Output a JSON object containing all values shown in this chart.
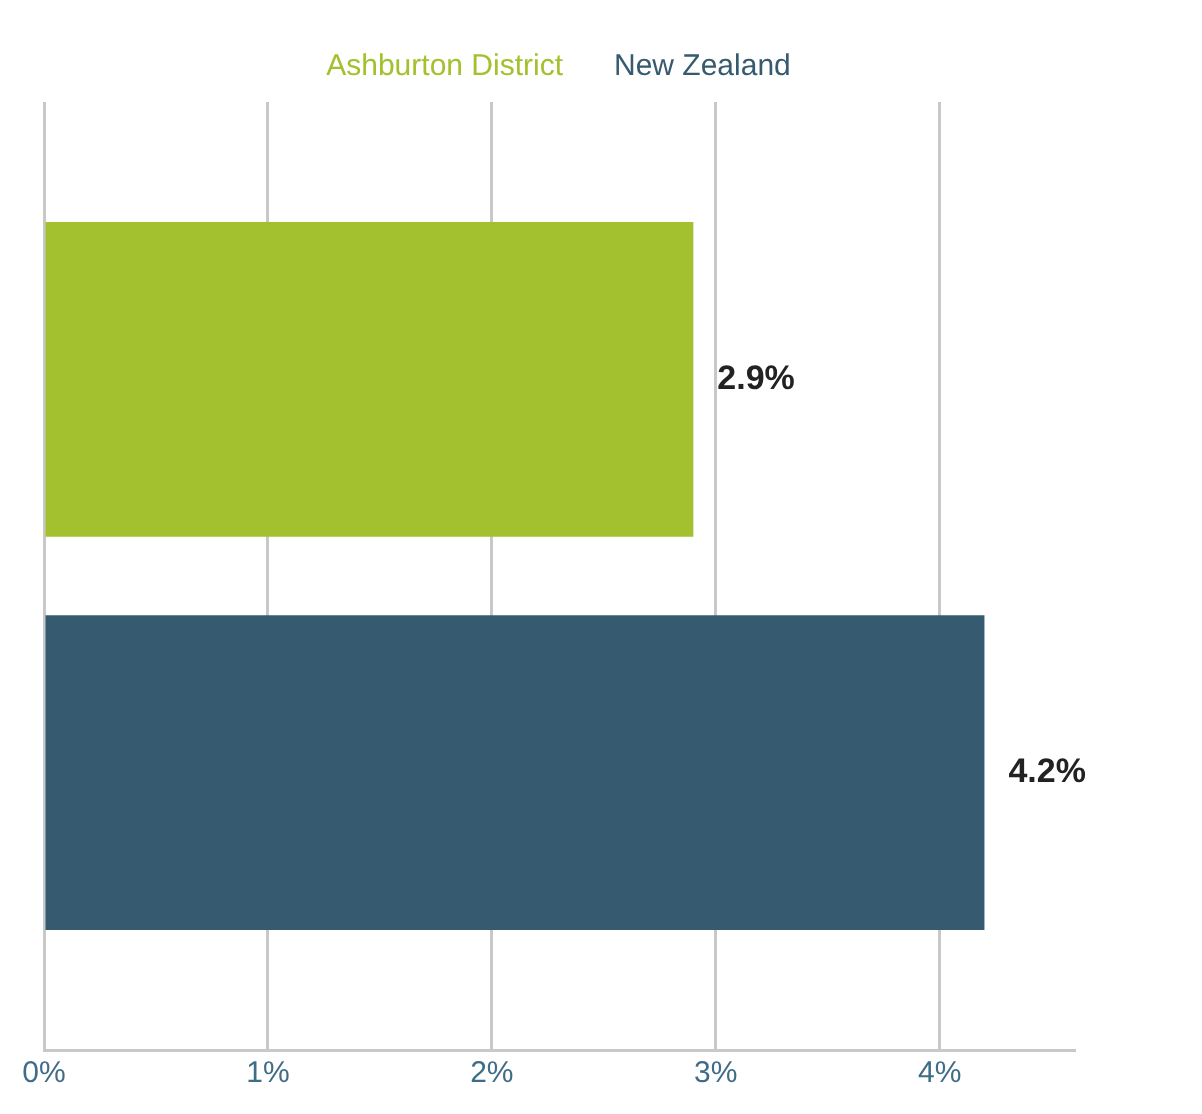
{
  "chart_data": {
    "type": "bar",
    "orientation": "horizontal",
    "categories": [
      null
    ],
    "series": [
      {
        "name": "Ashburton District",
        "color": "#a3c12e",
        "values": [
          2.9
        ],
        "value_labels": [
          "2.9%"
        ]
      },
      {
        "name": "New Zealand",
        "color": "#365a70",
        "values": [
          4.2
        ],
        "value_labels": [
          "4.2%"
        ]
      }
    ],
    "xticks": [
      {
        "value": 0,
        "label": "0%"
      },
      {
        "value": 1,
        "label": "1%"
      },
      {
        "value": 2,
        "label": "2%"
      },
      {
        "value": 3,
        "label": "3%"
      },
      {
        "value": 4,
        "label": "4%"
      }
    ],
    "xlim": [
      0,
      4.6
    ],
    "grid": "x",
    "legend": "top"
  }
}
